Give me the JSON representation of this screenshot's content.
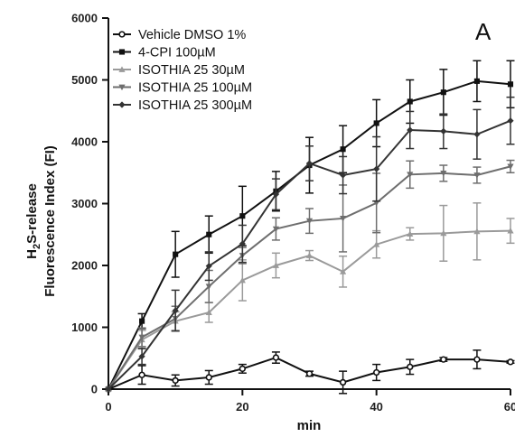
{
  "chart_data": {
    "type": "line",
    "panel_label": "A",
    "title": "",
    "xlabel": "min",
    "ylabel_prefix": "H",
    "ylabel_sub": "2",
    "ylabel_rest": "S-release",
    "ylabel_line2": "Fluorescence Index (FI)",
    "xlim": [
      0,
      60
    ],
    "ylim": [
      0,
      6000
    ],
    "x_ticks": [
      0,
      20,
      40,
      60
    ],
    "y_ticks": [
      0,
      1000,
      2000,
      3000,
      4000,
      5000,
      6000
    ],
    "legend_position": "top-left",
    "grid": false,
    "x": [
      0,
      5,
      10,
      15,
      20,
      25,
      30,
      35,
      40,
      45,
      50,
      55,
      60
    ],
    "series": [
      {
        "name": "Vehicle DMSO 1%",
        "marker": "circle-open",
        "color": "#111111",
        "values": [
          0,
          230,
          140,
          190,
          330,
          510,
          250,
          110,
          270,
          360,
          480,
          480,
          440
        ],
        "errors": [
          0,
          150,
          90,
          110,
          70,
          90,
          40,
          180,
          130,
          120,
          30,
          150,
          20
        ]
      },
      {
        "name": "4-CPI 100µM",
        "marker": "square",
        "color": "#111111",
        "values": [
          0,
          1100,
          2180,
          2500,
          2800,
          3200,
          3620,
          3880,
          4300,
          4650,
          4800,
          4980,
          4930
        ],
        "errors": [
          0,
          120,
          370,
          300,
          480,
          320,
          450,
          380,
          380,
          350,
          370,
          330,
          380
        ]
      },
      {
        "name": "ISOTHIA 25 30µM",
        "marker": "triangle-up",
        "color": "#9a9a9a",
        "values": [
          0,
          800,
          1100,
          1240,
          1760,
          2000,
          2160,
          1900,
          2340,
          2510,
          2520,
          2550,
          2560
        ],
        "errors": [
          0,
          150,
          150,
          160,
          330,
          200,
          80,
          250,
          220,
          100,
          450,
          460,
          200
        ]
      },
      {
        "name": "ISOTHIA 25 100µM",
        "marker": "triangle-down",
        "color": "#6e6e6e",
        "values": [
          0,
          840,
          1140,
          1660,
          2160,
          2590,
          2720,
          2760,
          3010,
          3470,
          3490,
          3460,
          3600
        ],
        "errors": [
          0,
          150,
          200,
          260,
          130,
          180,
          200,
          540,
          480,
          220,
          130,
          130,
          100
        ]
      },
      {
        "name": "ISOTHIA 25 300µM",
        "marker": "diamond",
        "color": "#333333",
        "values": [
          0,
          530,
          1270,
          1990,
          2350,
          3150,
          3650,
          3460,
          3560,
          4190,
          4170,
          4120,
          4340
        ],
        "errors": [
          0,
          130,
          330,
          230,
          300,
          250,
          280,
          300,
          520,
          300,
          280,
          400,
          380
        ]
      }
    ]
  }
}
